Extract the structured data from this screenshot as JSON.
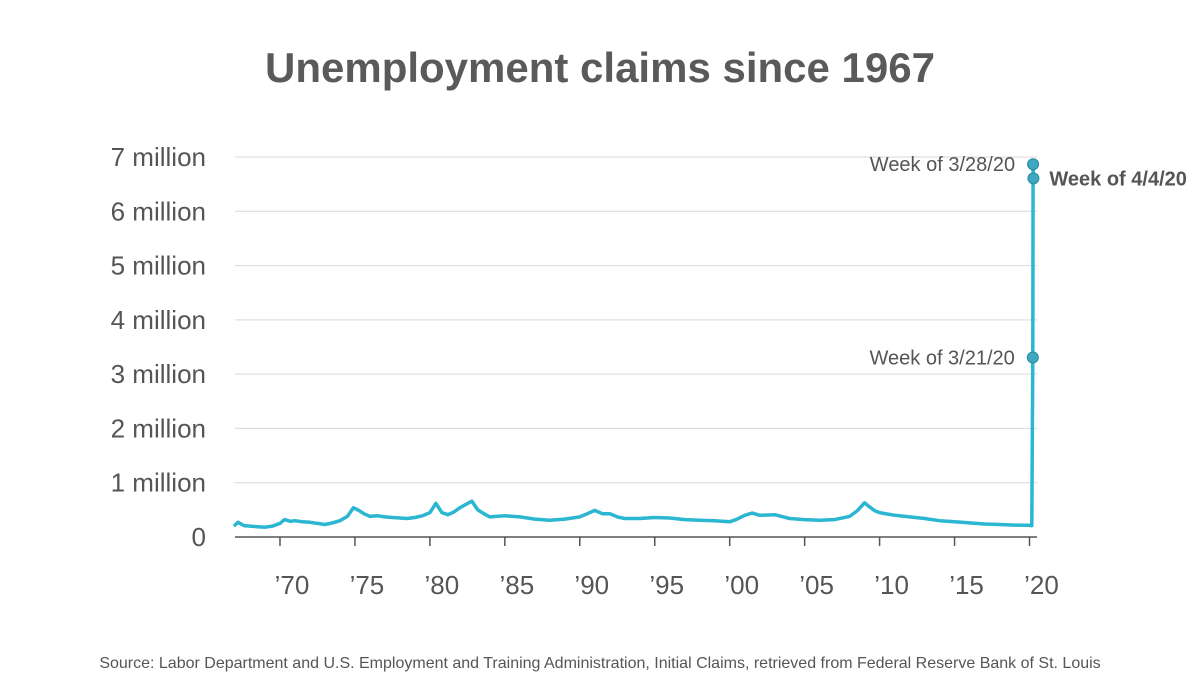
{
  "chart_data": {
    "type": "line",
    "title": "Unemployment claims since 1967",
    "source": "Source: Labor Department and U.S. Employment and Training Administration, Initial Claims, retrieved from Federal Reserve Bank of St. Louis",
    "xlabel": "",
    "ylabel": "",
    "xlim": [
      1967,
      2020.5
    ],
    "ylim": [
      0,
      7000000
    ],
    "grid": true,
    "line_color": "#2bb6d1",
    "marker_color": "#3fa7c0",
    "yticks": [
      {
        "value": 0,
        "label": "0"
      },
      {
        "value": 1000000,
        "label": "1 million"
      },
      {
        "value": 2000000,
        "label": "2 million"
      },
      {
        "value": 3000000,
        "label": "3 million"
      },
      {
        "value": 4000000,
        "label": "4 million"
      },
      {
        "value": 5000000,
        "label": "5 million"
      },
      {
        "value": 6000000,
        "label": "6 million"
      },
      {
        "value": 7000000,
        "label": "7 million"
      }
    ],
    "xticks": [
      {
        "value": 1970,
        "label": "’70"
      },
      {
        "value": 1975,
        "label": "’75"
      },
      {
        "value": 1980,
        "label": "’80"
      },
      {
        "value": 1985,
        "label": "’85"
      },
      {
        "value": 1990,
        "label": "’90"
      },
      {
        "value": 1995,
        "label": "’95"
      },
      {
        "value": 2000,
        "label": "’00"
      },
      {
        "value": 2005,
        "label": "’05"
      },
      {
        "value": 2010,
        "label": "’10"
      },
      {
        "value": 2015,
        "label": "’15"
      },
      {
        "value": 2020,
        "label": "’20"
      }
    ],
    "series": [
      {
        "name": "Initial Claims",
        "x": [
          1967.0,
          1967.2,
          1967.6,
          1968.0,
          1968.5,
          1969.0,
          1969.5,
          1970.0,
          1970.3,
          1970.7,
          1971.0,
          1971.5,
          1972.0,
          1972.5,
          1973.0,
          1973.5,
          1974.0,
          1974.5,
          1974.9,
          1975.2,
          1975.6,
          1976.0,
          1976.5,
          1977.0,
          1977.5,
          1978.0,
          1978.5,
          1979.0,
          1979.5,
          1980.0,
          1980.4,
          1980.8,
          1981.2,
          1981.6,
          1982.0,
          1982.4,
          1982.8,
          1983.2,
          1983.6,
          1984.0,
          1985.0,
          1986.0,
          1987.0,
          1988.0,
          1989.0,
          1989.5,
          1990.0,
          1990.5,
          1991.0,
          1991.5,
          1992.0,
          1992.5,
          1993.0,
          1994.0,
          1995.0,
          1996.0,
          1997.0,
          1998.0,
          1999.0,
          2000.0,
          2000.5,
          2001.0,
          2001.5,
          2002.0,
          2003.0,
          2004.0,
          2005.0,
          2006.0,
          2007.0,
          2008.0,
          2008.5,
          2009.0,
          2009.3,
          2009.7,
          2010.0,
          2011.0,
          2012.0,
          2013.0,
          2014.0,
          2015.0,
          2016.0,
          2017.0,
          2018.0,
          2019.0,
          2019.9,
          2020.15,
          2020.22,
          2020.24,
          2020.26
        ],
        "values": [
          220000,
          270000,
          210000,
          200000,
          190000,
          180000,
          200000,
          250000,
          320000,
          290000,
          300000,
          280000,
          270000,
          250000,
          230000,
          260000,
          300000,
          380000,
          540000,
          500000,
          430000,
          380000,
          390000,
          370000,
          360000,
          350000,
          340000,
          360000,
          390000,
          450000,
          620000,
          450000,
          410000,
          460000,
          540000,
          600000,
          660000,
          500000,
          430000,
          370000,
          390000,
          370000,
          330000,
          310000,
          330000,
          350000,
          370000,
          430000,
          490000,
          430000,
          430000,
          370000,
          340000,
          340000,
          360000,
          350000,
          320000,
          310000,
          300000,
          280000,
          330000,
          400000,
          440000,
          400000,
          410000,
          340000,
          320000,
          310000,
          320000,
          380000,
          480000,
          630000,
          560000,
          480000,
          450000,
          400000,
          370000,
          340000,
          300000,
          280000,
          260000,
          240000,
          230000,
          220000,
          215000,
          210000,
          3307000,
          6867000,
          6606000
        ]
      }
    ],
    "annotations": [
      {
        "x": 2020.22,
        "y": 3307000,
        "label": "Week of 3/21/20",
        "side": "left",
        "bold": false
      },
      {
        "x": 2020.24,
        "y": 6867000,
        "label": "Week of 3/28/20",
        "side": "left",
        "bold": false
      },
      {
        "x": 2020.26,
        "y": 6606000,
        "label": "Week of 4/4/20",
        "side": "right",
        "bold": true
      }
    ]
  }
}
